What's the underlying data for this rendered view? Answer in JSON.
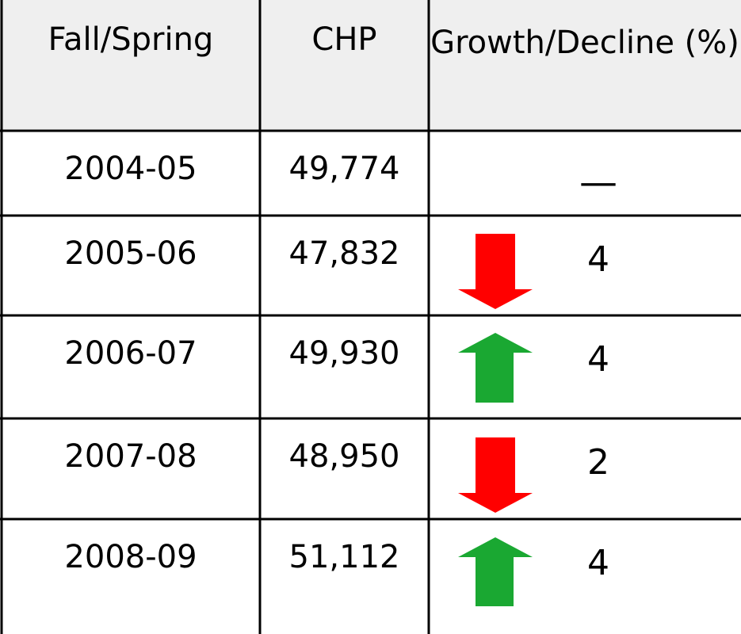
{
  "table": {
    "header": [
      "Fall/Spring",
      "CHP",
      "Growth/Decline (%)"
    ],
    "rows": [
      [
        "2004-05",
        "49,774",
        "—"
      ],
      [
        "2005-06",
        "47,832",
        "4"
      ],
      [
        "2006-07",
        "49,930",
        "4"
      ],
      [
        "2007-08",
        "48,950",
        "2"
      ],
      [
        "2008-09",
        "51,112",
        "4"
      ]
    ]
  }
}
